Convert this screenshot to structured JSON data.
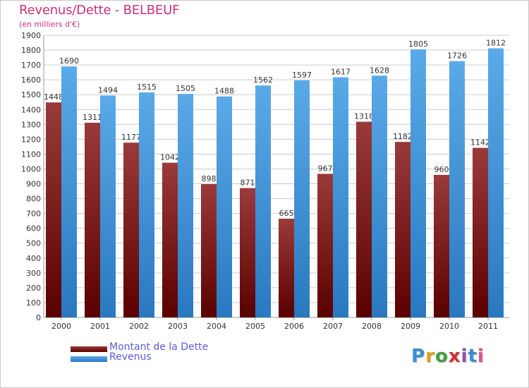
{
  "title": "Revenus/Dette - BELBEUF",
  "subtitle": "(en milliers d'€)",
  "brand": {
    "text": "Proxiti",
    "letter_colors": [
      "#3a8fd0",
      "#e0a020",
      "#40a040",
      "#d03030",
      "#9050b0",
      "#3a8fd0",
      "#e05090"
    ]
  },
  "colors": {
    "debt_top": "#9a3a3a",
    "debt_bottom": "#5a0000",
    "rev_top": "#5aaae8",
    "rev_bottom": "#2a78c0",
    "grid": "#cccccc",
    "background": "#ffffff",
    "axis_text": "#333333",
    "title": "#c8327a",
    "legend_text": "#5a5adc"
  },
  "chart_data": {
    "type": "bar",
    "categories": [
      "2000",
      "2001",
      "2002",
      "2003",
      "2004",
      "2005",
      "2006",
      "2007",
      "2008",
      "2009",
      "2010",
      "2011"
    ],
    "series": [
      {
        "name": "Montant de la Dette",
        "values": [
          1448,
          1311,
          1177,
          1042,
          898,
          871,
          665,
          967,
          1318,
          1182,
          960,
          1142
        ]
      },
      {
        "name": "Revenus",
        "values": [
          1690,
          1494,
          1515,
          1505,
          1488,
          1562,
          1597,
          1617,
          1628,
          1805,
          1726,
          1812
        ]
      }
    ],
    "ylim": [
      0,
      1900
    ],
    "ytick_step": 100,
    "grid": true,
    "legend_position": "bottom-left"
  }
}
